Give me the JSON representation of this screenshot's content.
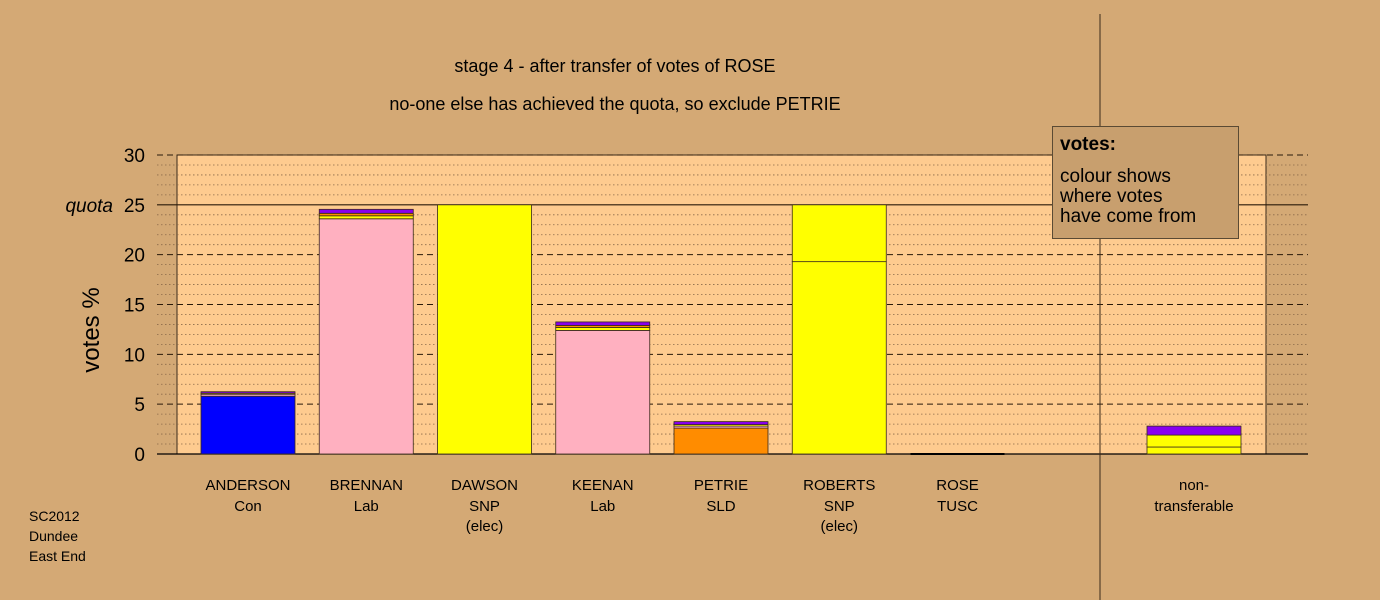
{
  "chart_data": {
    "type": "bar",
    "stacked": true,
    "title": "stage 4 - after transfer of votes of ROSE",
    "subtitle": "no-one else has achieved the quota, so exclude PETRIE",
    "ylabel": "votes %",
    "ylim": [
      0,
      30
    ],
    "yticks": [
      "0",
      "5",
      "10",
      "15",
      "20",
      "25",
      "30"
    ],
    "quota": {
      "label": "quota",
      "value": 25
    },
    "categories": [
      {
        "name": "ANDERSON",
        "party": "Con",
        "note": "",
        "segments": [
          {
            "value": 5.8,
            "color": "#0000ff"
          },
          {
            "value": 0.2,
            "color": "#ffb0c0"
          },
          {
            "value": 0.1,
            "color": "#ffff00"
          },
          {
            "value": 0.15,
            "color": "#8800ee"
          }
        ]
      },
      {
        "name": "BRENNAN",
        "party": "Lab",
        "note": "",
        "segments": [
          {
            "value": 23.6,
            "color": "#ffb0c0"
          },
          {
            "value": 0.3,
            "color": "#ffff00"
          },
          {
            "value": 0.25,
            "color": "#ff8c00"
          },
          {
            "value": 0.4,
            "color": "#8800ee"
          }
        ]
      },
      {
        "name": "DAWSON",
        "party": "SNP",
        "note": "(elec)",
        "segments": [
          {
            "value": 25.0,
            "color": "#ffff00"
          }
        ]
      },
      {
        "name": "KEENAN",
        "party": "Lab",
        "note": "",
        "segments": [
          {
            "value": 12.4,
            "color": "#ffb0c0"
          },
          {
            "value": 0.3,
            "color": "#ffff00"
          },
          {
            "value": 0.2,
            "color": "#ff8c00"
          },
          {
            "value": 0.35,
            "color": "#8800ee"
          }
        ]
      },
      {
        "name": "PETRIE",
        "party": "SLD",
        "note": "",
        "segments": [
          {
            "value": 2.6,
            "color": "#ff8c00"
          },
          {
            "value": 0.2,
            "color": "#ffb0c0"
          },
          {
            "value": 0.15,
            "color": "#ffff00"
          },
          {
            "value": 0.3,
            "color": "#8800ee"
          }
        ]
      },
      {
        "name": "ROBERTS",
        "party": "SNP",
        "note": "(elec)",
        "segments": [
          {
            "value": 19.3,
            "color": "#ffff00"
          },
          {
            "value": 5.7,
            "color": "#ffff00"
          }
        ]
      },
      {
        "name": "ROSE",
        "party": "TUSC",
        "note": "",
        "segments": []
      }
    ],
    "nontransferable": {
      "label_line1": "non-",
      "label_line2": "transferable",
      "segments": [
        {
          "value": 0.7,
          "color": "#ffff00"
        },
        {
          "value": 1.2,
          "color": "#ffff00"
        },
        {
          "value": 0.9,
          "color": "#8800ee"
        }
      ]
    },
    "grid": true
  },
  "legend": {
    "title": "votes:",
    "lines": [
      "colour shows",
      "where votes",
      "have come from"
    ]
  },
  "footnote": [
    "SC2012",
    "Dundee",
    "East End"
  ]
}
